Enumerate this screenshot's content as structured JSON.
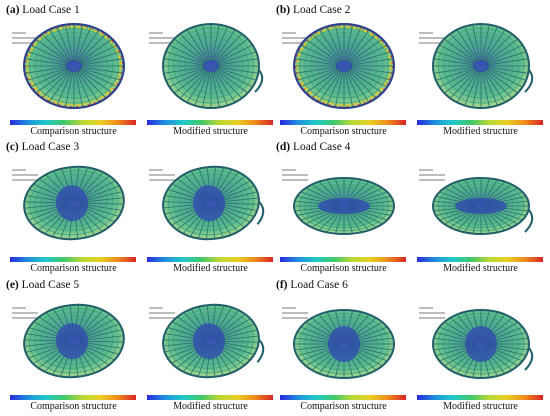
{
  "panels": [
    {
      "letter": "(a)",
      "title": "Load Case 1",
      "case": 1,
      "views": [
        {
          "caption": "Comparison structure",
          "variant": "comparison"
        },
        {
          "caption": "Modified structure",
          "variant": "modified"
        }
      ]
    },
    {
      "letter": "(b)",
      "title": "Load Case 2",
      "case": 2,
      "views": [
        {
          "caption": "Comparison structure",
          "variant": "comparison"
        },
        {
          "caption": "Modified structure",
          "variant": "modified"
        }
      ]
    },
    {
      "letter": "(c)",
      "title": "Load Case 3",
      "case": 3,
      "views": [
        {
          "caption": "Comparison structure",
          "variant": "comparison"
        },
        {
          "caption": "Modified structure",
          "variant": "modified"
        }
      ]
    },
    {
      "letter": "(d)",
      "title": "Load Case 4",
      "case": 4,
      "views": [
        {
          "caption": "Comparison structure",
          "variant": "comparison"
        },
        {
          "caption": "Modified structure",
          "variant": "modified"
        }
      ]
    },
    {
      "letter": "(e)",
      "title": "Load Case 5",
      "case": 5,
      "views": [
        {
          "caption": "Comparison structure",
          "variant": "comparison"
        },
        {
          "caption": "Modified structure",
          "variant": "modified"
        }
      ]
    },
    {
      "letter": "(f)",
      "title": "Load Case 6",
      "case": 6,
      "views": [
        {
          "caption": "Comparison structure",
          "variant": "comparison"
        },
        {
          "caption": "Modified structure",
          "variant": "modified"
        }
      ]
    }
  ],
  "colors": {
    "colorbar": [
      "#2a2adc",
      "#1f8fe0",
      "#22c8c8",
      "#3ec86a",
      "#b8d838",
      "#e8d020",
      "#f08a1e",
      "#d82424"
    ],
    "edge_blue": "#2c3c8c",
    "edge_red": "#c83030",
    "edge_yellow": "#d8c832",
    "center_blue": "#3048b0",
    "mesh_green": "#3fae7c",
    "mesh_teal": "#2f8f8a"
  }
}
